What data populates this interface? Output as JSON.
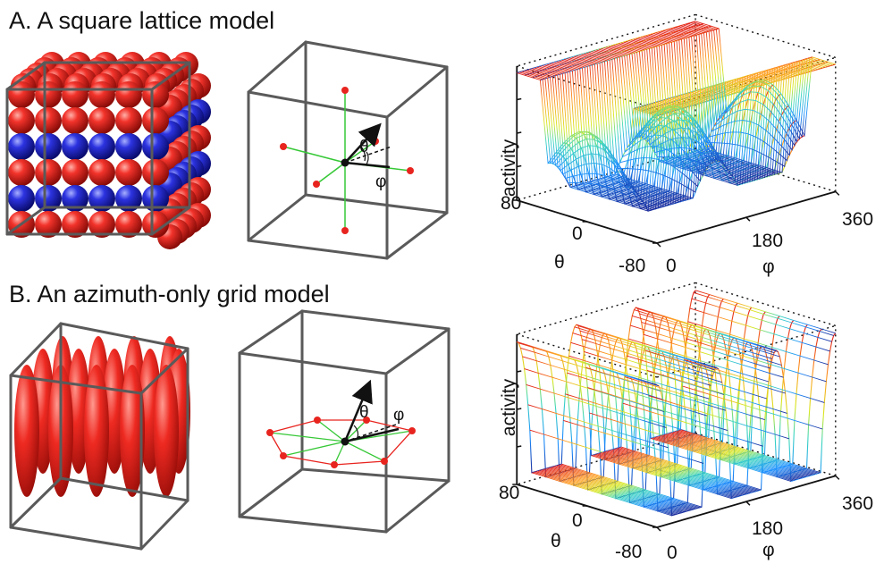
{
  "panel_a": {
    "title": "A. A square lattice model",
    "angle_theta": "θ",
    "angle_phi": "φ",
    "plot": {
      "zlabel": "activity",
      "theta_label": "θ",
      "phi_label": "φ",
      "theta_ticks": [
        "80",
        "0",
        "-80"
      ],
      "phi_ticks": [
        "0",
        "180",
        "360"
      ]
    }
  },
  "panel_b": {
    "title": "B. An azimuth-only grid model",
    "angle_theta": "θ",
    "angle_phi": "φ",
    "plot": {
      "zlabel": "activity",
      "theta_label": "θ",
      "phi_label": "φ",
      "theta_ticks": [
        "80",
        "0",
        "-80"
      ],
      "phi_ticks": [
        "0",
        "180",
        "360"
      ]
    }
  },
  "colors": {
    "lattice_red": "#e8241f",
    "lattice_blue": "#2a2fd6",
    "frame_gray": "#5a5a5a",
    "axis_green": "#37c837",
    "hexagon_red": "#e8241f"
  }
}
